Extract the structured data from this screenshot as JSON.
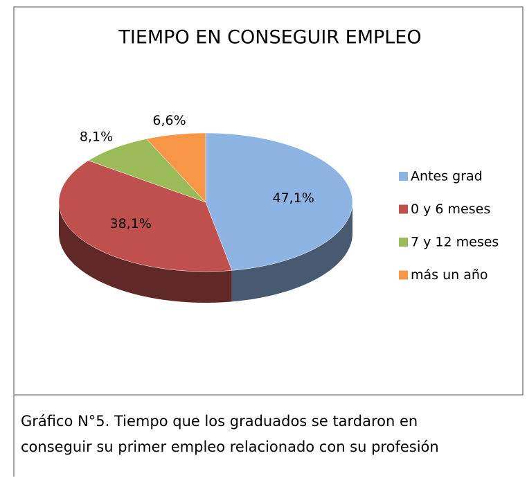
{
  "chart_data": {
    "type": "pie",
    "title": "TIEMPO EN CONSEGUIR EMPLEO",
    "categories": [
      "Antes grad",
      "0 y 6  meses",
      "7 y 12 meses",
      "más un año"
    ],
    "values": [
      47.1,
      38.1,
      8.1,
      6.6
    ],
    "value_labels": [
      "47,1%",
      "38,1%",
      "8,1%",
      "6,6%"
    ],
    "colors": [
      "#8EB4E3",
      "#C0504D",
      "#9BBB59",
      "#F79646"
    ],
    "legend": "right"
  },
  "caption": [
    "Gráfico N°5. Tiempo que los graduados se tardaron en",
    "conseguir su primer empleo relacionado con su profesión"
  ]
}
